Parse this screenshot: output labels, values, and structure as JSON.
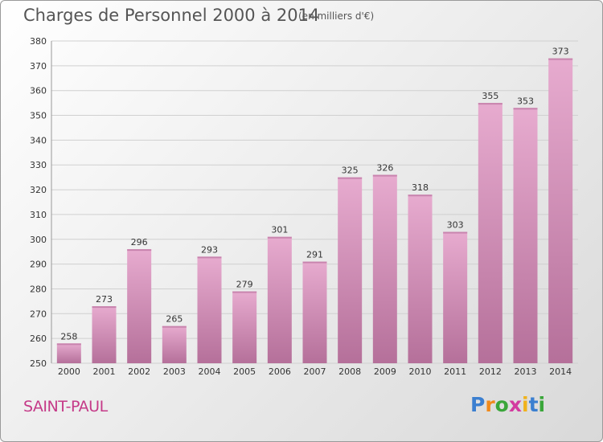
{
  "title": "Charges de Personnel 2000 à 2014",
  "subtitle": "(en milliers d'€)",
  "commune": "SAINT-PAUL",
  "brand": {
    "letters": [
      "P",
      "r",
      "o",
      "x",
      "i",
      "t",
      "i"
    ],
    "colors": [
      "#3b7fd0",
      "#f08a1c",
      "#3aa63a",
      "#d33aa0",
      "#f0b21c",
      "#3b7fd0",
      "#3aa63a"
    ]
  },
  "colors": {
    "bar_top": "#e7abcf",
    "bar_bottom": "#b5709a",
    "grid": "#d0d0d0",
    "axis_text": "#333333"
  },
  "chart_data": {
    "type": "bar",
    "categories": [
      "2000",
      "2001",
      "2002",
      "2003",
      "2004",
      "2005",
      "2006",
      "2007",
      "2008",
      "2009",
      "2010",
      "2011",
      "2012",
      "2013",
      "2014"
    ],
    "values": [
      258,
      273,
      296,
      265,
      293,
      279,
      301,
      291,
      325,
      326,
      318,
      303,
      355,
      353,
      373
    ],
    "ylim": [
      250,
      380
    ],
    "yticks": [
      250,
      260,
      270,
      280,
      290,
      300,
      310,
      320,
      330,
      340,
      350,
      360,
      370,
      380
    ],
    "grid": true,
    "xlabel": "",
    "ylabel": ""
  }
}
